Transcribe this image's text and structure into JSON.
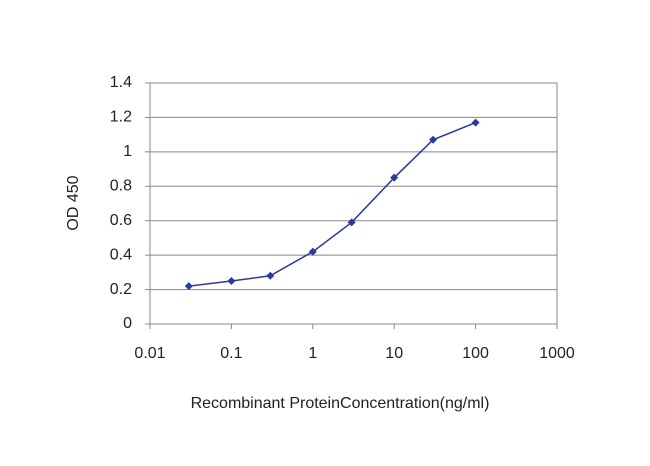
{
  "chart_data": {
    "type": "line",
    "xlabel": "Recombinant ProteinConcentration(ng/ml)",
    "ylabel": "OD 450",
    "xscale": "log",
    "x": [
      0.03,
      0.1,
      0.3,
      1,
      3,
      10,
      30,
      100
    ],
    "series": [
      {
        "color": "#2b3a9c",
        "values": [
          0.22,
          0.25,
          0.28,
          0.42,
          0.59,
          0.85,
          1.07,
          1.17
        ]
      }
    ],
    "xlim": [
      0.01,
      1000
    ],
    "xticks": [
      0.01,
      0.1,
      1,
      10,
      100,
      1000
    ],
    "ylim": [
      0,
      1.4
    ],
    "yticks": [
      0,
      0.2,
      0.4,
      0.6,
      0.8,
      1,
      1.2,
      1.4
    ],
    "grid": true
  }
}
